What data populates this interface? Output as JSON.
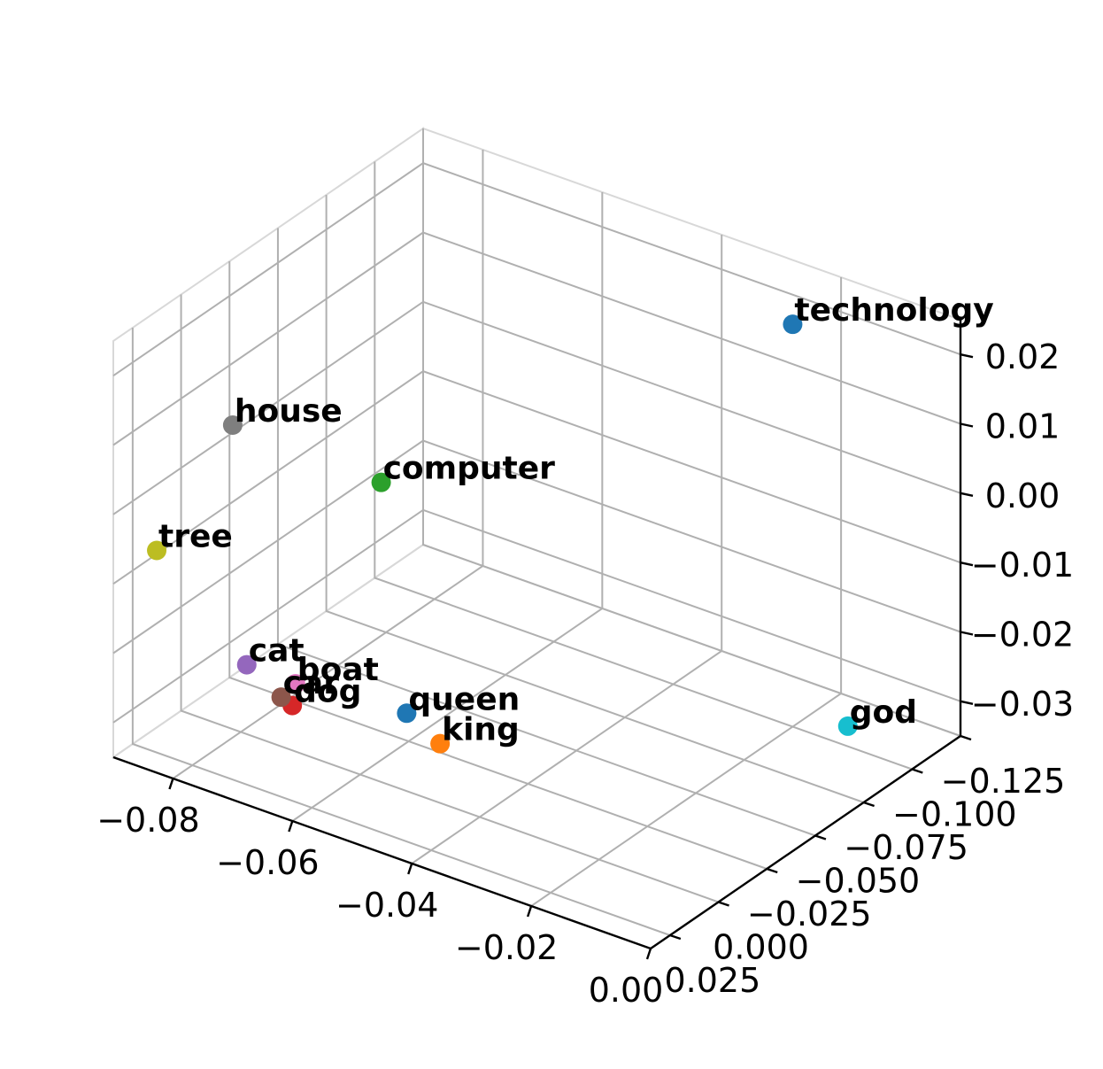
{
  "chart_data": {
    "type": "scatter",
    "title": "",
    "xlabel": "",
    "ylabel": "",
    "zlabel": "",
    "grid": true,
    "xlim": [
      -0.09,
      0.0
    ],
    "ylim": [
      -0.125,
      0.035
    ],
    "zlim": [
      -0.035,
      0.025
    ],
    "x_ticks": [
      "−0.08",
      "−0.06",
      "−0.04",
      "−0.02",
      "0.00"
    ],
    "y_ticks": [
      "−0.125",
      "−0.100",
      "−0.075",
      "−0.050",
      "−0.025",
      "0.000",
      "0.025"
    ],
    "z_ticks": [
      "−0.03",
      "−0.02",
      "−0.01",
      "0.00",
      "0.01",
      "0.02"
    ],
    "points": [
      {
        "label": "king",
        "x": -0.045,
        "y": 0.005,
        "z": -0.025,
        "color": "#ff7f0e"
      },
      {
        "label": "queen",
        "x": -0.048,
        "y": 0.013,
        "z": -0.02,
        "color": "#1f77b4"
      },
      {
        "label": "cat",
        "x": -0.079,
        "y": 0.0,
        "z": -0.025,
        "color": "#9467bd"
      },
      {
        "label": "dog",
        "x": -0.073,
        "y": -0.005,
        "z": -0.03,
        "color": "#d62728"
      },
      {
        "label": "car",
        "x": -0.07,
        "y": 0.01,
        "z": -0.025,
        "color": "#8c564b"
      },
      {
        "label": "boat",
        "x": -0.065,
        "y": 0.018,
        "z": -0.02,
        "color": "#e377c2"
      },
      {
        "label": "tree",
        "x": -0.085,
        "y": 0.028,
        "z": -0.005,
        "color": "#bcbd22"
      },
      {
        "label": "house",
        "x": -0.07,
        "y": 0.035,
        "z": 0.019,
        "color": "#7f7f7f"
      },
      {
        "label": "computer",
        "x": -0.05,
        "y": 0.02,
        "z": 0.014,
        "color": "#2ca02c"
      },
      {
        "label": "technology",
        "x": -0.02,
        "y": -0.1,
        "z": 0.023,
        "color": "#1f77b4"
      },
      {
        "label": "god",
        "x": -0.014,
        "y": -0.11,
        "z": -0.035,
        "color": "#17becf"
      }
    ]
  }
}
